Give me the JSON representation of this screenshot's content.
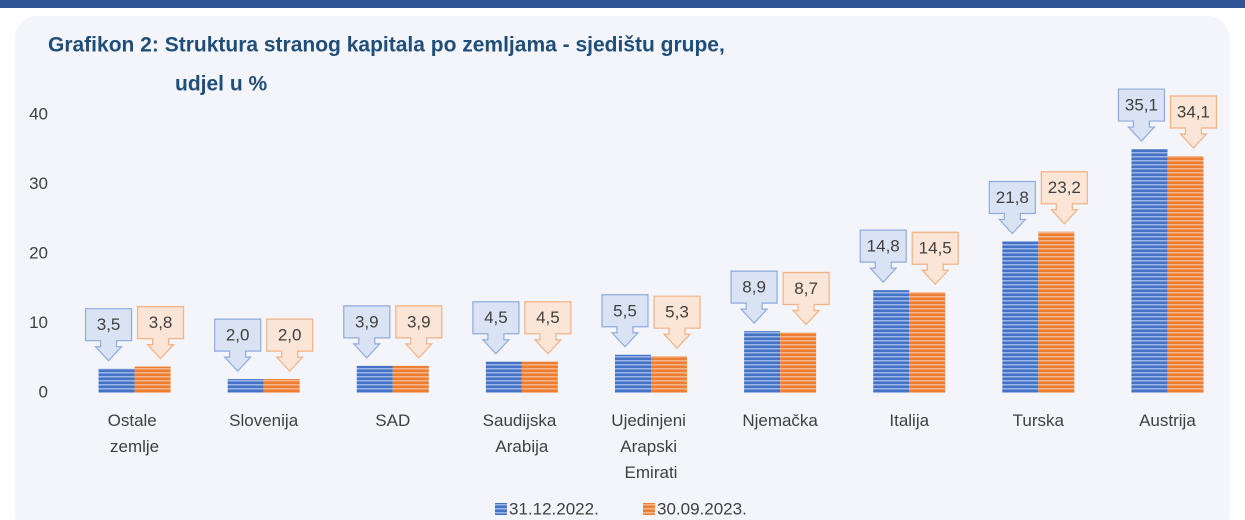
{
  "chart_data": {
    "type": "bar",
    "title": "Grafikon 2: Struktura stranog kapitala po zemljama - sjedištu grupe,",
    "subtitle": "udjel u %",
    "categories": [
      "Ostale zemlje",
      "Slovenija",
      "SAD",
      "Saudijska Arabija",
      "Ujedinjeni Arapski Emirati",
      "Njemačka",
      "Italija",
      "Turska",
      "Austrija"
    ],
    "series": [
      {
        "name": "31.12.2022.",
        "color": "#4472c4",
        "values": [
          3.5,
          2.0,
          3.9,
          4.5,
          5.5,
          8.9,
          14.8,
          21.8,
          35.1
        ],
        "value_labels": [
          "3,5",
          "2,0",
          "3,9",
          "4,5",
          "5,5",
          "8,9",
          "14,8",
          "21,8",
          "35,1"
        ]
      },
      {
        "name": "30.09.2023.",
        "color": "#ed7d31",
        "values": [
          3.8,
          2.0,
          3.9,
          4.5,
          5.3,
          8.7,
          14.5,
          23.2,
          34.1
        ],
        "value_labels": [
          "3,8",
          "2,0",
          "3,9",
          "4,5",
          "5,3",
          "8,7",
          "14,5",
          "23,2",
          "34,1"
        ]
      }
    ],
    "ylim": [
      0,
      40
    ],
    "yticks": [
      0,
      10,
      20,
      30,
      40
    ],
    "grid": false,
    "legend": "bottom"
  }
}
